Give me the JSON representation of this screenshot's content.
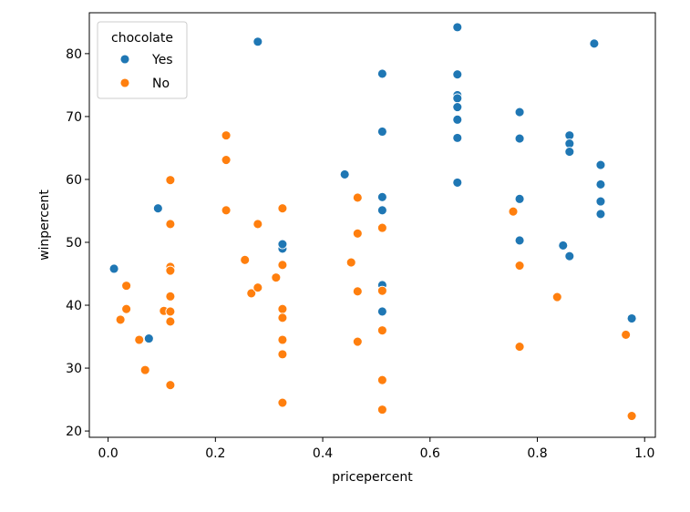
{
  "chart_data": {
    "type": "scatter",
    "title": "",
    "xlabel": "pricepercent",
    "ylabel": "winpercent",
    "xlim": [
      -0.035,
      1.02
    ],
    "ylim": [
      19,
      86.5
    ],
    "xticks": [
      0.0,
      0.2,
      0.4,
      0.6,
      0.8,
      1.0
    ],
    "xtick_labels": [
      "0.0",
      "0.2",
      "0.4",
      "0.6",
      "0.8",
      "1.0"
    ],
    "yticks": [
      20,
      30,
      40,
      50,
      60,
      70,
      80
    ],
    "ytick_labels": [
      "20",
      "30",
      "40",
      "50",
      "60",
      "70",
      "80"
    ],
    "grid": false,
    "legend": {
      "title": "chocolate",
      "placement": "top-left"
    },
    "series": [
      {
        "name": "Yes",
        "color": "#1f77b4",
        "points": [
          [
            0.011,
            45.8
          ],
          [
            0.076,
            34.7
          ],
          [
            0.093,
            55.4
          ],
          [
            0.279,
            81.9
          ],
          [
            0.325,
            49.0
          ],
          [
            0.325,
            49.7
          ],
          [
            0.441,
            60.8
          ],
          [
            0.511,
            76.8
          ],
          [
            0.511,
            67.6
          ],
          [
            0.511,
            57.2
          ],
          [
            0.511,
            55.1
          ],
          [
            0.511,
            43.2
          ],
          [
            0.511,
            39.0
          ],
          [
            0.651,
            84.2
          ],
          [
            0.651,
            76.7
          ],
          [
            0.651,
            73.4
          ],
          [
            0.651,
            72.9
          ],
          [
            0.651,
            71.5
          ],
          [
            0.651,
            69.5
          ],
          [
            0.651,
            66.6
          ],
          [
            0.651,
            59.5
          ],
          [
            0.767,
            70.7
          ],
          [
            0.767,
            66.5
          ],
          [
            0.767,
            56.9
          ],
          [
            0.767,
            50.3
          ],
          [
            0.848,
            49.5
          ],
          [
            0.86,
            67.0
          ],
          [
            0.86,
            65.7
          ],
          [
            0.86,
            64.4
          ],
          [
            0.86,
            47.8
          ],
          [
            0.906,
            81.6
          ],
          [
            0.918,
            62.3
          ],
          [
            0.918,
            59.2
          ],
          [
            0.918,
            56.5
          ],
          [
            0.918,
            54.5
          ],
          [
            0.976,
            37.9
          ]
        ]
      },
      {
        "name": "No",
        "color": "#ff7f0e",
        "points": [
          [
            0.023,
            37.7
          ],
          [
            0.034,
            43.1
          ],
          [
            0.034,
            39.4
          ],
          [
            0.058,
            34.5
          ],
          [
            0.069,
            29.7
          ],
          [
            0.104,
            39.1
          ],
          [
            0.116,
            59.9
          ],
          [
            0.116,
            52.9
          ],
          [
            0.116,
            46.1
          ],
          [
            0.116,
            45.5
          ],
          [
            0.116,
            41.4
          ],
          [
            0.116,
            39.0
          ],
          [
            0.116,
            37.4
          ],
          [
            0.116,
            27.3
          ],
          [
            0.22,
            67.0
          ],
          [
            0.22,
            63.1
          ],
          [
            0.22,
            55.1
          ],
          [
            0.255,
            47.2
          ],
          [
            0.267,
            41.9
          ],
          [
            0.279,
            52.9
          ],
          [
            0.279,
            42.8
          ],
          [
            0.313,
            44.4
          ],
          [
            0.325,
            55.4
          ],
          [
            0.325,
            46.4
          ],
          [
            0.325,
            39.4
          ],
          [
            0.325,
            38.0
          ],
          [
            0.325,
            34.5
          ],
          [
            0.325,
            32.2
          ],
          [
            0.325,
            24.5
          ],
          [
            0.453,
            46.8
          ],
          [
            0.465,
            57.1
          ],
          [
            0.465,
            51.4
          ],
          [
            0.465,
            42.2
          ],
          [
            0.465,
            34.2
          ],
          [
            0.511,
            52.3
          ],
          [
            0.511,
            42.3
          ],
          [
            0.511,
            36.0
          ],
          [
            0.511,
            28.1
          ],
          [
            0.511,
            23.4
          ],
          [
            0.755,
            54.9
          ],
          [
            0.767,
            46.3
          ],
          [
            0.767,
            33.4
          ],
          [
            0.837,
            41.3
          ],
          [
            0.965,
            35.3
          ],
          [
            0.976,
            22.4
          ]
        ]
      }
    ]
  }
}
